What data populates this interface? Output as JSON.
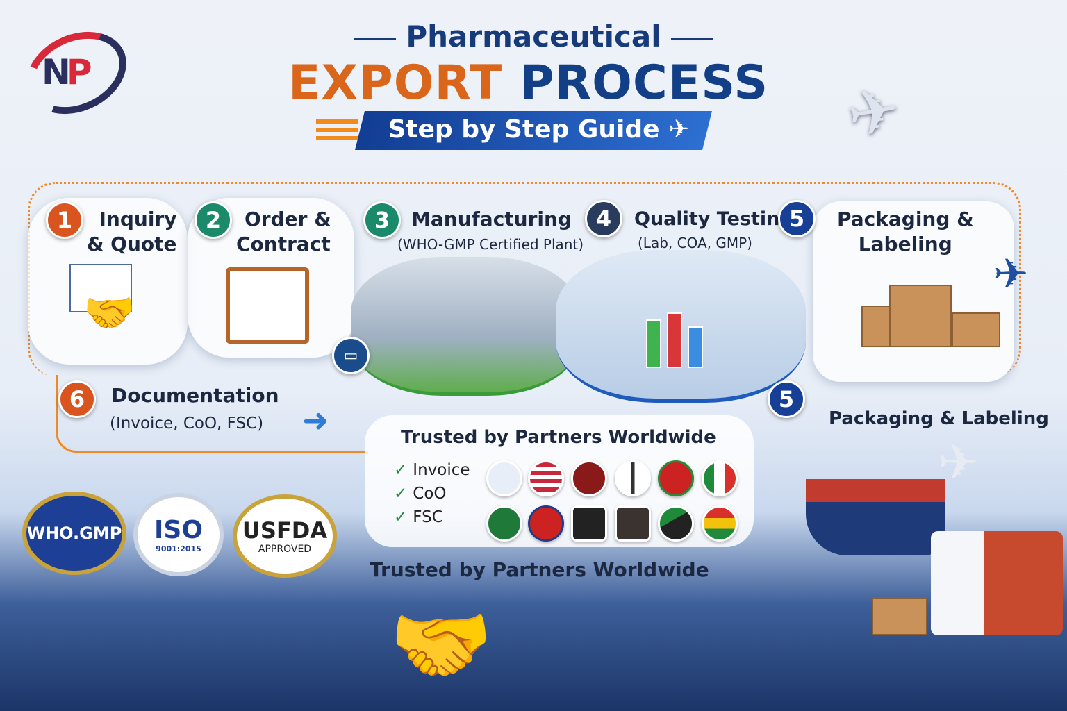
{
  "logo": {
    "text": "NP"
  },
  "header": {
    "pre_title": "Pharmaceutical",
    "title_orange": "EXPORT",
    "title_blue": "PROCESS",
    "ribbon": "Step by Step Guide"
  },
  "steps": [
    {
      "number": "1",
      "label_line1": "Inquiry",
      "label_line2": "& Quote",
      "color": "#d9541e"
    },
    {
      "number": "2",
      "label_line1": "Order &",
      "label_line2": "Contract",
      "color": "#1b8a6b"
    },
    {
      "number": "3",
      "label": "Manufacturing",
      "sub": "(WHO-GMP Certified Plant)",
      "color": "#1b8a6b"
    },
    {
      "number": "4",
      "label": "Quality Testing",
      "sub": "(Lab, COA, GMP)",
      "color": "#2a3c5e"
    },
    {
      "number": "5",
      "label_line1": "Packaging &",
      "label_line2": "Labeling",
      "color": "#163f95"
    },
    {
      "number": "6",
      "label": "Documentation",
      "sub": "(Invoice, CoO, FSC)",
      "color": "#d9541e"
    },
    {
      "number": "5",
      "label": "Packaging & Labeling",
      "color": "#163f95"
    }
  ],
  "trust": {
    "title": "Trusted by Partners Worldwide",
    "checks": [
      "Invoice",
      "CoO",
      "FSC"
    ],
    "footer": "Trusted by Partners Worldwide"
  },
  "badges": [
    {
      "top": "WHO.GMP",
      "bottom": ""
    },
    {
      "top": "ISO",
      "bottom": "9001:2015"
    },
    {
      "top": "USFDA",
      "bottom": "APPROVED"
    }
  ],
  "colors": {
    "orange": "#d9661a",
    "navy": "#133f86",
    "green_check": "#1f8a3a"
  }
}
